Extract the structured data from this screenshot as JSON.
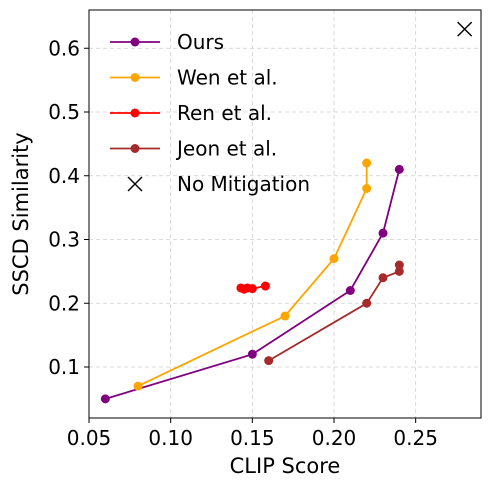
{
  "chart_data": {
    "type": "line",
    "xlabel": "CLIP Score",
    "ylabel": "SSCD Similarity",
    "xlim": [
      0.05,
      0.29
    ],
    "ylim": [
      0.02,
      0.66
    ],
    "xticks": [
      0.05,
      0.1,
      0.15,
      0.2,
      0.25
    ],
    "xtick_labels": [
      "0.05",
      "0.10",
      "0.15",
      "0.20",
      "0.25"
    ],
    "yticks": [
      0.1,
      0.2,
      0.3,
      0.4,
      0.5,
      0.6
    ],
    "ytick_labels": [
      "0.1",
      "0.2",
      "0.3",
      "0.4",
      "0.5",
      "0.6"
    ],
    "grid": true,
    "legend_position": "top-left",
    "series": [
      {
        "name": "Ours",
        "color": "#800080",
        "marker": "circle",
        "x": [
          0.06,
          0.15,
          0.21,
          0.23,
          0.24
        ],
        "y": [
          0.05,
          0.12,
          0.22,
          0.31,
          0.41
        ]
      },
      {
        "name": "Wen et al.",
        "color": "#FFA500",
        "marker": "circle",
        "x": [
          0.08,
          0.17,
          0.2,
          0.22,
          0.22
        ],
        "y": [
          0.07,
          0.18,
          0.27,
          0.38,
          0.42
        ]
      },
      {
        "name": "Ren et al.",
        "color": "#FF0000",
        "marker": "circle",
        "x": [
          0.143,
          0.145,
          0.147,
          0.15,
          0.158
        ],
        "y": [
          0.224,
          0.222,
          0.224,
          0.223,
          0.227
        ]
      },
      {
        "name": "Jeon et al.",
        "color": "#A52A2A",
        "marker": "circle",
        "x": [
          0.16,
          0.22,
          0.23,
          0.24,
          0.24
        ],
        "y": [
          0.11,
          0.2,
          0.24,
          0.25,
          0.26
        ]
      },
      {
        "name": "No Mitigation",
        "color": "#000000",
        "marker": "x",
        "x": [
          0.28
        ],
        "y": [
          0.63
        ]
      }
    ]
  }
}
